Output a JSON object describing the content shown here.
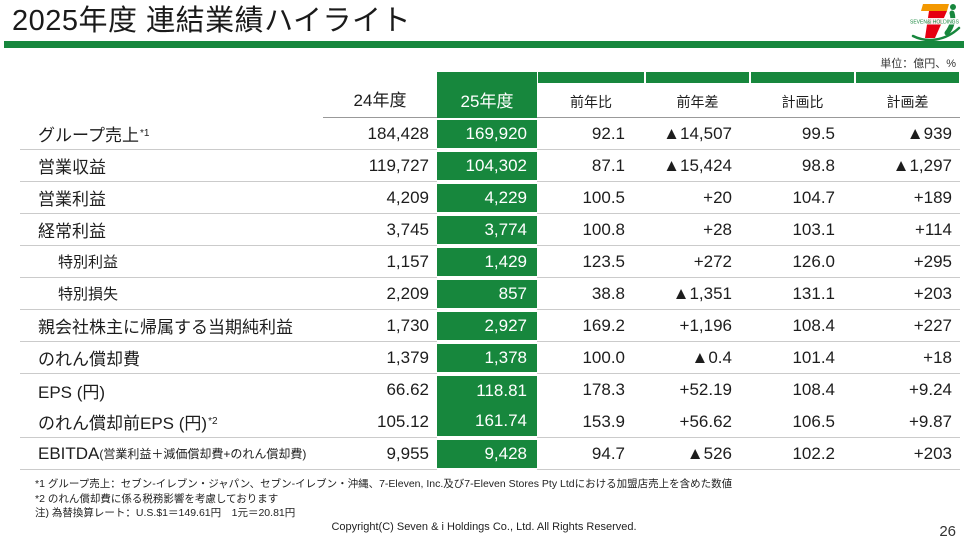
{
  "header": {
    "title": "2025年度 連結業績ハイライト",
    "logo_text": "SEVEN&i HOLDINGS"
  },
  "colors": {
    "accent_green": "#17873d",
    "logo_orange": "#f39800",
    "logo_red": "#e60012"
  },
  "unit_label": "単位：億円、%",
  "table": {
    "columns": {
      "fy24": "24年度",
      "fy25": "25年度",
      "yoy_ratio": "前年比",
      "yoy_diff": "前年差",
      "plan_ratio": "計画比",
      "plan_diff": "計画差"
    },
    "rows": [
      {
        "label": "グループ売上",
        "sup": "*1",
        "fy24": "184,428",
        "fy25": "169,920",
        "yoy_ratio": "92.1",
        "yoy_diff": "▲14,507",
        "plan_ratio": "99.5",
        "plan_diff": "▲939"
      },
      {
        "label": "営業収益",
        "fy24": "119,727",
        "fy25": "104,302",
        "yoy_ratio": "87.1",
        "yoy_diff": "▲15,424",
        "plan_ratio": "98.8",
        "plan_diff": "▲1,297"
      },
      {
        "label": "営業利益",
        "fy24": "4,209",
        "fy25": "4,229",
        "yoy_ratio": "100.5",
        "yoy_diff": "+20",
        "plan_ratio": "104.7",
        "plan_diff": "+189"
      },
      {
        "label": "経常利益",
        "fy24": "3,745",
        "fy25": "3,774",
        "yoy_ratio": "100.8",
        "yoy_diff": "+28",
        "plan_ratio": "103.1",
        "plan_diff": "+114"
      },
      {
        "label": "特別利益",
        "indent": true,
        "fy24": "1,157",
        "fy25": "1,429",
        "yoy_ratio": "123.5",
        "yoy_diff": "+272",
        "plan_ratio": "126.0",
        "plan_diff": "+295"
      },
      {
        "label": "特別損失",
        "indent": true,
        "fy24": "2,209",
        "fy25": "857",
        "yoy_ratio": "38.8",
        "yoy_diff": "▲1,351",
        "plan_ratio": "131.1",
        "plan_diff": "+203"
      },
      {
        "label": "親会社株主に帰属する当期純利益",
        "fy24": "1,730",
        "fy25": "2,927",
        "yoy_ratio": "169.2",
        "yoy_diff": "+1,196",
        "plan_ratio": "108.4",
        "plan_diff": "+227"
      },
      {
        "label": "のれん償却費",
        "fy24": "1,379",
        "fy25": "1,378",
        "yoy_ratio": "100.0",
        "yoy_diff": "▲0.4",
        "plan_ratio": "101.4",
        "plan_diff": "+18"
      },
      {
        "label": "EPS (円)",
        "fy24": "66.62",
        "fy25": "118.81",
        "yoy_ratio": "178.3",
        "yoy_diff": "+52.19",
        "plan_ratio": "108.4",
        "plan_diff": "+9.24",
        "merge_below": true
      },
      {
        "label": "のれん償却前EPS (円)",
        "sup": "*2",
        "fy24": "105.12",
        "fy25": "161.74",
        "yoy_ratio": "153.9",
        "yoy_diff": "+56.62",
        "plan_ratio": "106.5",
        "plan_diff": "+9.87",
        "merge_above": true
      },
      {
        "label": "EBITDA",
        "note": "(営業利益＋減価償却費+のれん償却費)",
        "fy24": "9,955",
        "fy25": "9,428",
        "yoy_ratio": "94.7",
        "yoy_diff": "▲526",
        "plan_ratio": "102.2",
        "plan_diff": "+203"
      }
    ]
  },
  "footnotes": [
    "*1 グループ売上：セブン-イレブン・ジャパン、セブン-イレブン・沖縄、7-Eleven, Inc.及び7-Eleven Stores Pty Ltdにおける加盟店売上を含めた数値",
    "*2 のれん償却費に係る税務影響を考慮しております",
    "注) 為替換算レート：U.S.$1＝149.61円　1元＝20.81円"
  ],
  "footer": {
    "copyright": "Copyright(C) Seven & i Holdings Co., Ltd. All Rights Reserved.",
    "page_number": "26"
  }
}
